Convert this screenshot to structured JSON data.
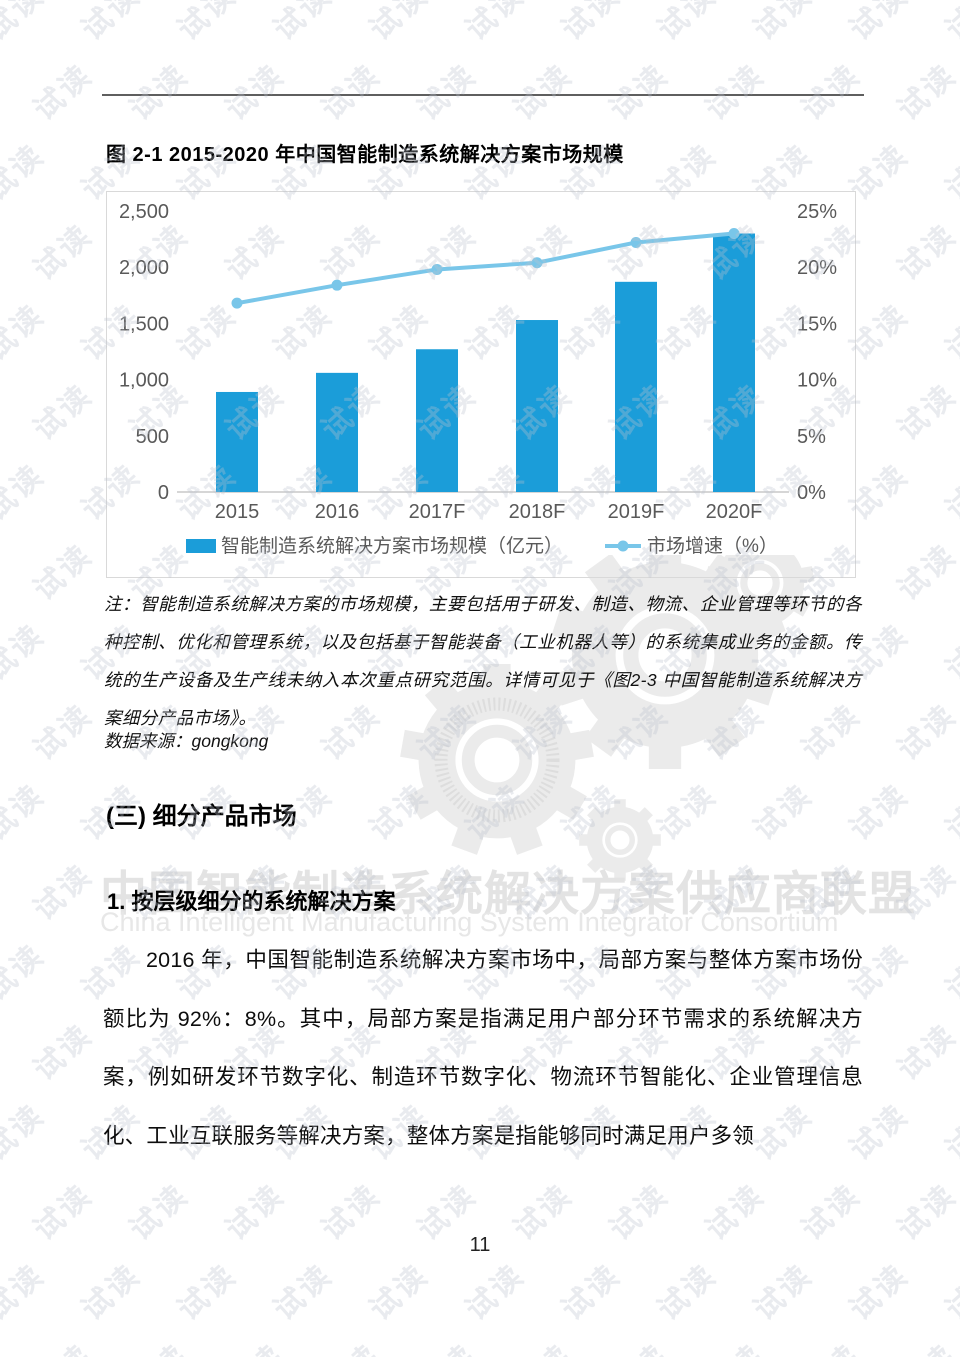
{
  "page": {
    "page_number": "11",
    "figure_title": "图 2-1 2015-2020 年中国智能制造系统解决方案市场规模",
    "watermark_tile_text": "试读",
    "center_watermark_cn": "中国智能制造系统解决方案供应商联盟",
    "center_watermark_en": "China Intelligent Manufacturing System Integrator Consortium"
  },
  "chart_data": {
    "type": "bar",
    "subtype": "bar+line combo, dual axis",
    "categories": [
      "2015",
      "2016",
      "2017F",
      "2018F",
      "2019F",
      "2020F"
    ],
    "series": [
      {
        "name": "智能制造系统解决方案市场规模（亿元）",
        "type": "bar",
        "axis": "left",
        "color": "#1b9dd9",
        "values": [
          890,
          1060,
          1270,
          1530,
          1870,
          2300
        ]
      },
      {
        "name": "市场增速（%）",
        "type": "line",
        "axis": "right",
        "color": "#79c6e9",
        "values": [
          16.8,
          18.4,
          19.8,
          20.4,
          22.2,
          23.0
        ]
      }
    ],
    "left_axis": {
      "min": 0,
      "max": 2500,
      "step": 500,
      "labels": [
        "2,500",
        "2,000",
        "1,500",
        "1,000",
        "500",
        "0"
      ]
    },
    "right_axis": {
      "min": 0,
      "max": 25,
      "step": 5,
      "labels": [
        "25%",
        "20%",
        "15%",
        "10%",
        "5%",
        "0%"
      ]
    },
    "grid": "off",
    "legend_position": "bottom",
    "axis_text_color": "#595959",
    "baseline_color": "#c9c9c9"
  },
  "note": {
    "text": "注：智能制造系统解决方案的市场规模，主要包括用于研发、制造、物流、企业管理等环节的各种控制、优化和管理系统，以及包括基于智能装备（工业机器人等）的系统集成业务的金额。传统的生产设备及生产线未纳入本次重点研究范围。详情可见于《图2-3 中国智能制造系统解决方案细分产品市场》。",
    "source": "数据来源：gongkong"
  },
  "sections": {
    "section_heading": "(三) 细分产品市场",
    "subsection_heading": "1.  按层级细分的系统解决方案",
    "body_paragraph": "2016 年，中国智能制造系统解决方案市场中，局部方案与整体方案市场份额比为 92%：8%。其中，局部方案是指满足用户部分环节需求的系统解决方案，例如研发环节数字化、制造环节数字化、物流环节智能化、企业管理信息化、工业互联服务等解决方案，整体方案是指能够同时满足用户多领"
  }
}
